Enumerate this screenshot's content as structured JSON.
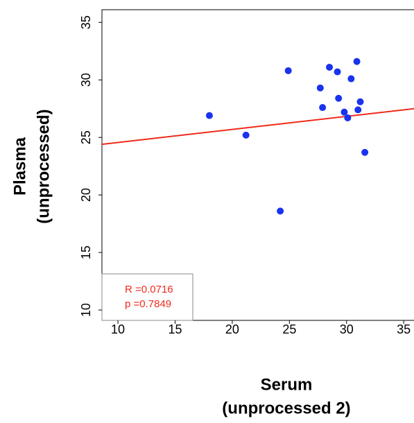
{
  "chart_data": {
    "type": "scatter",
    "xlabel": [
      "Serum",
      "(unprocessed 2)"
    ],
    "ylabel": [
      "Plasma",
      "(unprocessed)"
    ],
    "x": [
      18.0,
      21.2,
      24.2,
      24.9,
      27.7,
      27.9,
      28.5,
      29.2,
      29.3,
      29.8,
      30.1,
      30.4,
      30.9,
      31.0,
      31.2,
      31.6
    ],
    "y": [
      26.9,
      25.2,
      18.6,
      30.8,
      29.3,
      27.6,
      31.1,
      30.7,
      28.4,
      27.2,
      26.7,
      30.1,
      31.6,
      27.4,
      28.1,
      23.7
    ],
    "color": "#1a33ee",
    "fit_line": {
      "x": [
        8.6,
        35.9
      ],
      "y": [
        24.4,
        27.5
      ],
      "color": "#ee2a1a"
    },
    "annotations": [
      "R =0.0716",
      "p =0.7849"
    ],
    "xlim": [
      8.6,
      35.9
    ],
    "ylim": [
      9.1,
      36.1
    ],
    "xticks": [
      10,
      15,
      20,
      25,
      30,
      35
    ],
    "yticks": [
      10,
      15,
      20,
      25,
      30,
      35
    ]
  }
}
